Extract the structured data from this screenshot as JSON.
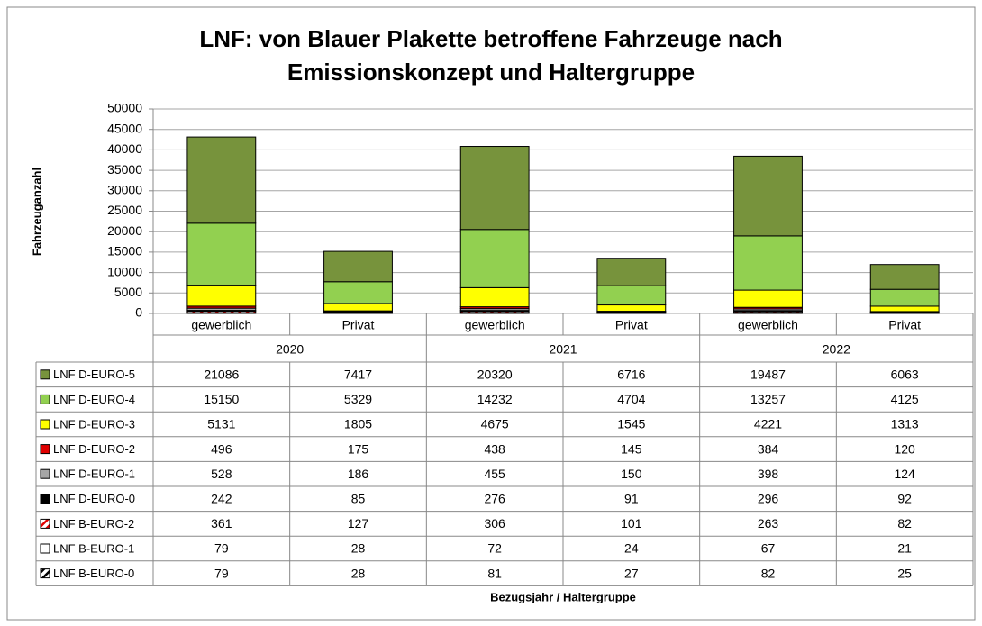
{
  "chart_data": {
    "type": "stacked_bar",
    "title": [
      "LNF: von Blauer Plakette betroffene Fahrzeuge nach",
      "Emissionskonzept und Haltergruppe"
    ],
    "y_label": "Fahrzeuganzahl",
    "x_label": "Bezugsjahr / Haltergruppe",
    "groups": [
      "2020",
      "2021",
      "2022"
    ],
    "categories": [
      "gewerblich",
      "Privat",
      "gewerblich",
      "Privat",
      "gewerblich",
      "Privat"
    ],
    "ylim": [
      0,
      50000
    ],
    "yticks": [
      0,
      5000,
      10000,
      15000,
      20000,
      25000,
      30000,
      35000,
      40000,
      45000,
      50000
    ],
    "grid": true,
    "series": [
      {
        "name": "LNF D-EURO-5",
        "color": "#77933c",
        "values": [
          21086,
          7417,
          20320,
          6716,
          19487,
          6063
        ]
      },
      {
        "name": "LNF D-EURO-4",
        "color": "#92d050",
        "values": [
          15150,
          5329,
          14232,
          4704,
          13257,
          4125
        ]
      },
      {
        "name": "LNF D-EURO-3",
        "color": "#ffff00",
        "values": [
          5131,
          1805,
          4675,
          1545,
          4221,
          1313
        ]
      },
      {
        "name": "LNF D-EURO-2",
        "color": "#e00000",
        "values": [
          496,
          175,
          438,
          145,
          384,
          120
        ]
      },
      {
        "name": "LNF D-EURO-1",
        "color": "#a6a6a6",
        "values": [
          528,
          186,
          455,
          150,
          398,
          124
        ]
      },
      {
        "name": "LNF D-EURO-0",
        "color": "#000000",
        "values": [
          242,
          85,
          276,
          91,
          296,
          92
        ]
      },
      {
        "name": "LNF B-EURO-2",
        "color": "#e00000",
        "hatch": true,
        "values": [
          361,
          127,
          306,
          101,
          263,
          82
        ]
      },
      {
        "name": "LNF B-EURO-1",
        "color": "#ffffff",
        "values": [
          79,
          28,
          72,
          24,
          67,
          21
        ]
      },
      {
        "name": "LNF B-EURO-0",
        "color": "#000000",
        "hatch": true,
        "values": [
          79,
          28,
          81,
          27,
          82,
          25
        ]
      }
    ]
  }
}
